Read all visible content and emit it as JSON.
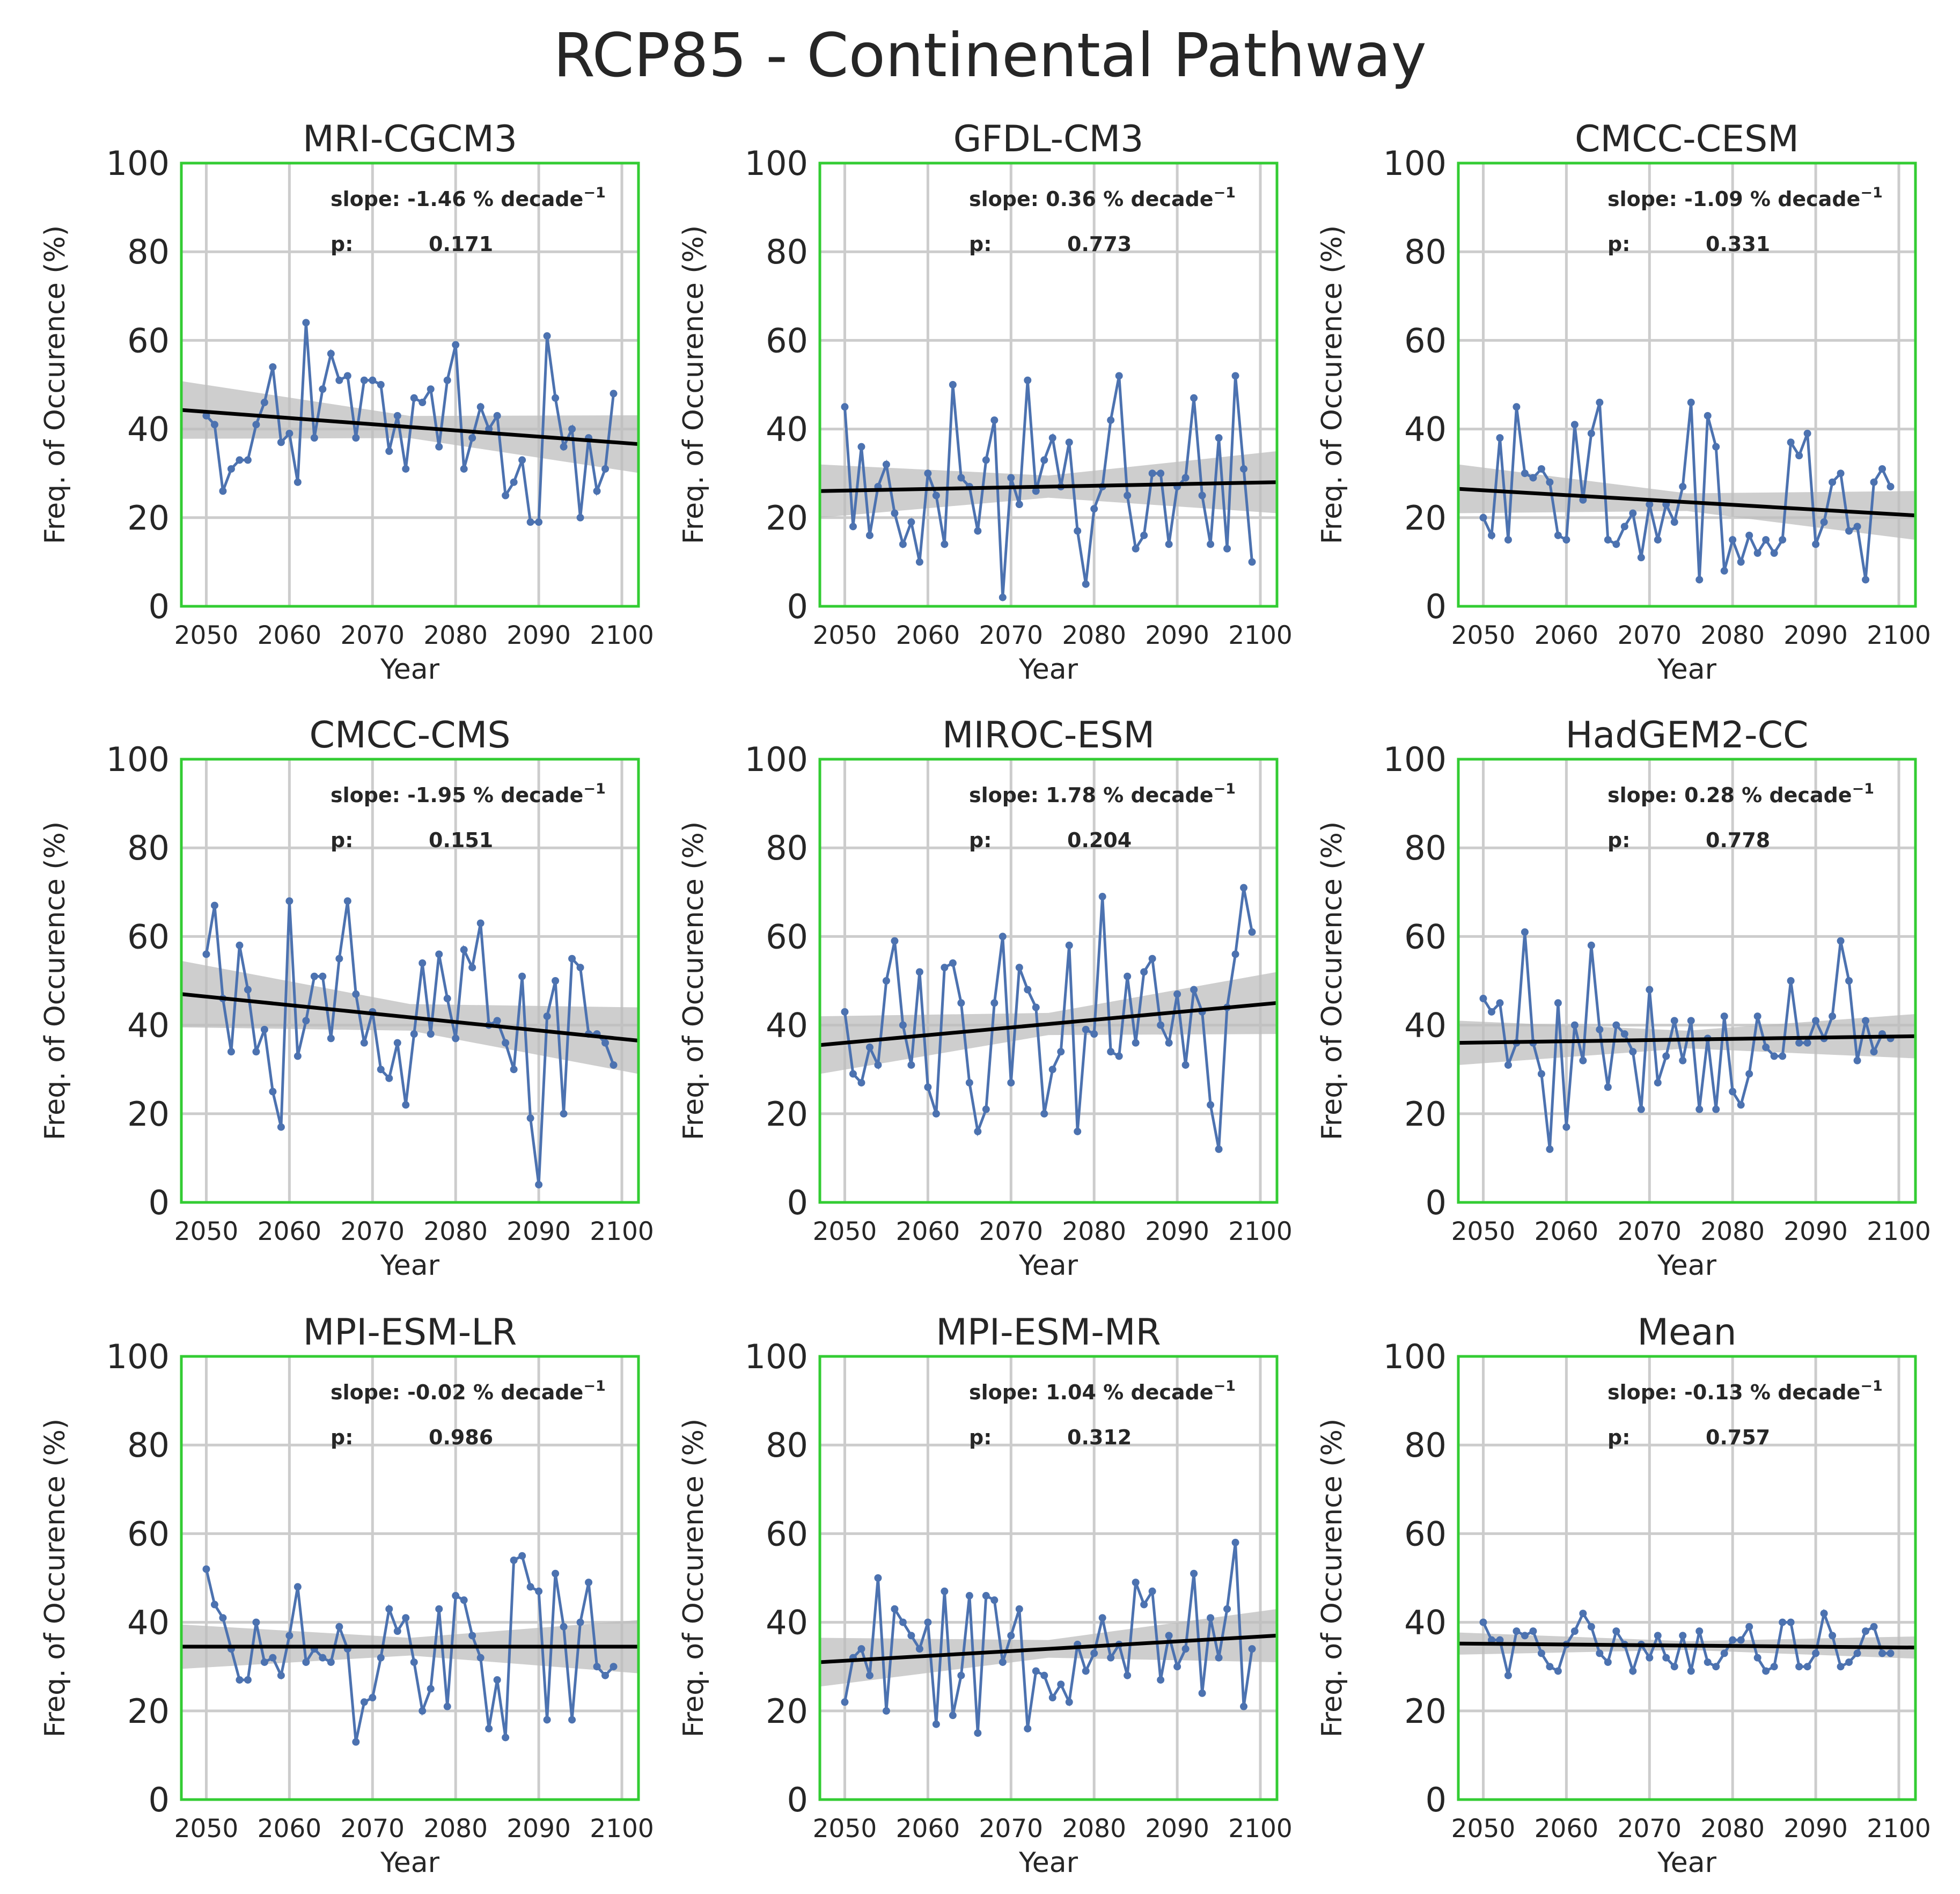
{
  "figure": {
    "suptitle": "RCP85 - Continental Pathway"
  },
  "style": {
    "series_color": "#4c72b0",
    "trend_color": "#000000",
    "band_color": "#bdbdbd",
    "frame_color": "#33cc33",
    "grid_color": "#cccccc"
  },
  "chart_data": [
    {
      "type": "line",
      "title": "MRI-CGCM3",
      "xlabel": "Year",
      "ylabel": "Freq. of Occurence (%)",
      "xlim": [
        2047,
        2102
      ],
      "ylim": [
        0,
        100
      ],
      "xticks": [
        2050,
        2060,
        2070,
        2080,
        2090,
        2100
      ],
      "yticks": [
        0,
        20,
        40,
        60,
        80,
        100
      ],
      "grid": true,
      "annotation": {
        "slope_label": "slope: -1.46 % decade",
        "slope_exponent": "−1",
        "p_label": "p:",
        "p_value": "0.171"
      },
      "trend": {
        "y_start": 44.3,
        "y_end": 36.6
      },
      "band_halfwidth": [
        6.5,
        2.5,
        6.5
      ],
      "x": [
        2050,
        2051,
        2052,
        2053,
        2054,
        2055,
        2056,
        2057,
        2058,
        2059,
        2060,
        2061,
        2062,
        2063,
        2064,
        2065,
        2066,
        2067,
        2068,
        2069,
        2070,
        2071,
        2072,
        2073,
        2074,
        2075,
        2076,
        2077,
        2078,
        2079,
        2080,
        2081,
        2082,
        2083,
        2084,
        2085,
        2086,
        2087,
        2088,
        2089,
        2090,
        2091,
        2092,
        2093,
        2094,
        2095,
        2096,
        2097,
        2098,
        2099
      ],
      "y": [
        43,
        41,
        26,
        31,
        33,
        33,
        41,
        46,
        54,
        37,
        39,
        28,
        64,
        38,
        49,
        57,
        51,
        52,
        38,
        51,
        51,
        50,
        35,
        43,
        31,
        47,
        46,
        49,
        36,
        51,
        59,
        31,
        38,
        45,
        40,
        43,
        25,
        28,
        33,
        19,
        19,
        61,
        47,
        36,
        40,
        20,
        38,
        26,
        31,
        48
      ]
    },
    {
      "type": "line",
      "title": "GFDL-CM3",
      "xlabel": "Year",
      "ylabel": "Freq. of Occurence (%)",
      "xlim": [
        2047,
        2102
      ],
      "ylim": [
        0,
        100
      ],
      "xticks": [
        2050,
        2060,
        2070,
        2080,
        2090,
        2100
      ],
      "yticks": [
        0,
        20,
        40,
        60,
        80,
        100
      ],
      "grid": true,
      "annotation": {
        "slope_label": "slope: 0.36 % decade",
        "slope_exponent": "−1",
        "p_label": "p:",
        "p_value": "0.773"
      },
      "trend": {
        "y_start": 26.0,
        "y_end": 28.0
      },
      "band_halfwidth": [
        6.0,
        2.5,
        7.0
      ],
      "x": [
        2050,
        2051,
        2052,
        2053,
        2054,
        2055,
        2056,
        2057,
        2058,
        2059,
        2060,
        2061,
        2062,
        2063,
        2064,
        2065,
        2066,
        2067,
        2068,
        2069,
        2070,
        2071,
        2072,
        2073,
        2074,
        2075,
        2076,
        2077,
        2078,
        2079,
        2080,
        2081,
        2082,
        2083,
        2084,
        2085,
        2086,
        2087,
        2088,
        2089,
        2090,
        2091,
        2092,
        2093,
        2094,
        2095,
        2096,
        2097,
        2098,
        2099
      ],
      "y": [
        45,
        18,
        36,
        16,
        27,
        32,
        21,
        14,
        19,
        10,
        30,
        25,
        14,
        50,
        29,
        27,
        17,
        33,
        42,
        2,
        29,
        23,
        51,
        26,
        33,
        38,
        27,
        37,
        17,
        5,
        22,
        27,
        42,
        52,
        25,
        13,
        16,
        30,
        30,
        14,
        27,
        29,
        47,
        25,
        14,
        38,
        13,
        52,
        31,
        10
      ]
    },
    {
      "type": "line",
      "title": "CMCC-CESM",
      "xlabel": "Year",
      "ylabel": "Freq. of Occurence (%)",
      "xlim": [
        2047,
        2102
      ],
      "ylim": [
        0,
        100
      ],
      "xticks": [
        2050,
        2060,
        2070,
        2080,
        2090,
        2100
      ],
      "yticks": [
        0,
        20,
        40,
        60,
        80,
        100
      ],
      "grid": true,
      "annotation": {
        "slope_label": "slope: -1.09 % decade",
        "slope_exponent": "−1",
        "p_label": "p:",
        "p_value": "0.331"
      },
      "trend": {
        "y_start": 26.5,
        "y_end": 20.5
      },
      "band_halfwidth": [
        5.5,
        2.0,
        5.5
      ],
      "x": [
        2050,
        2051,
        2052,
        2053,
        2054,
        2055,
        2056,
        2057,
        2058,
        2059,
        2060,
        2061,
        2062,
        2063,
        2064,
        2065,
        2066,
        2067,
        2068,
        2069,
        2070,
        2071,
        2072,
        2073,
        2074,
        2075,
        2076,
        2077,
        2078,
        2079,
        2080,
        2081,
        2082,
        2083,
        2084,
        2085,
        2086,
        2087,
        2088,
        2089,
        2090,
        2091,
        2092,
        2093,
        2094,
        2095,
        2096,
        2097,
        2098,
        2099
      ],
      "y": [
        20,
        16,
        38,
        15,
        45,
        30,
        29,
        31,
        28,
        16,
        15,
        41,
        24,
        39,
        46,
        15,
        14,
        18,
        21,
        11,
        23,
        15,
        23,
        19,
        27,
        46,
        6,
        43,
        36,
        8,
        15,
        10,
        16,
        12,
        15,
        12,
        15,
        37,
        34,
        39,
        14,
        19,
        28,
        30,
        17,
        18,
        6,
        28,
        31,
        27
      ]
    },
    {
      "type": "line",
      "title": "CMCC-CMS",
      "xlabel": "Year",
      "ylabel": "Freq. of Occurence (%)",
      "xlim": [
        2047,
        2102
      ],
      "ylim": [
        0,
        100
      ],
      "xticks": [
        2050,
        2060,
        2070,
        2080,
        2090,
        2100
      ],
      "yticks": [
        0,
        20,
        40,
        60,
        80,
        100
      ],
      "grid": true,
      "annotation": {
        "slope_label": "slope: -1.95 % decade",
        "slope_exponent": "−1",
        "p_label": "p:",
        "p_value": "0.151"
      },
      "trend": {
        "y_start": 47.0,
        "y_end": 36.5
      },
      "band_halfwidth": [
        7.5,
        3.0,
        7.5
      ],
      "x": [
        2050,
        2051,
        2052,
        2053,
        2054,
        2055,
        2056,
        2057,
        2058,
        2059,
        2060,
        2061,
        2062,
        2063,
        2064,
        2065,
        2066,
        2067,
        2068,
        2069,
        2070,
        2071,
        2072,
        2073,
        2074,
        2075,
        2076,
        2077,
        2078,
        2079,
        2080,
        2081,
        2082,
        2083,
        2084,
        2085,
        2086,
        2087,
        2088,
        2089,
        2090,
        2091,
        2092,
        2093,
        2094,
        2095,
        2096,
        2097,
        2098,
        2099
      ],
      "y": [
        56,
        67,
        46,
        34,
        58,
        48,
        34,
        39,
        25,
        17,
        68,
        33,
        41,
        51,
        51,
        37,
        55,
        68,
        47,
        36,
        43,
        30,
        28,
        36,
        22,
        38,
        54,
        38,
        56,
        46,
        37,
        57,
        53,
        63,
        40,
        41,
        36,
        30,
        51,
        19,
        4,
        42,
        50,
        20,
        55,
        53,
        38,
        38,
        36,
        31
      ]
    },
    {
      "type": "line",
      "title": "MIROC-ESM",
      "xlabel": "Year",
      "ylabel": "Freq. of Occurence (%)",
      "xlim": [
        2047,
        2102
      ],
      "ylim": [
        0,
        100
      ],
      "xticks": [
        2050,
        2060,
        2070,
        2080,
        2090,
        2100
      ],
      "yticks": [
        0,
        20,
        40,
        60,
        80,
        100
      ],
      "grid": true,
      "annotation": {
        "slope_label": "slope: 1.78 % decade",
        "slope_exponent": "−1",
        "p_label": "p:",
        "p_value": "0.204"
      },
      "trend": {
        "y_start": 35.5,
        "y_end": 45.0
      },
      "band_halfwidth": [
        6.5,
        2.5,
        7.0
      ],
      "x": [
        2050,
        2051,
        2052,
        2053,
        2054,
        2055,
        2056,
        2057,
        2058,
        2059,
        2060,
        2061,
        2062,
        2063,
        2064,
        2065,
        2066,
        2067,
        2068,
        2069,
        2070,
        2071,
        2072,
        2073,
        2074,
        2075,
        2076,
        2077,
        2078,
        2079,
        2080,
        2081,
        2082,
        2083,
        2084,
        2085,
        2086,
        2087,
        2088,
        2089,
        2090,
        2091,
        2092,
        2093,
        2094,
        2095,
        2096,
        2097,
        2098,
        2099
      ],
      "y": [
        43,
        29,
        27,
        35,
        31,
        50,
        59,
        40,
        31,
        52,
        26,
        20,
        53,
        54,
        45,
        27,
        16,
        21,
        45,
        60,
        27,
        53,
        48,
        44,
        20,
        30,
        34,
        58,
        16,
        39,
        38,
        69,
        34,
        33,
        51,
        36,
        52,
        55,
        40,
        36,
        47,
        31,
        48,
        43,
        22,
        12,
        44,
        56,
        71,
        61
      ]
    },
    {
      "type": "line",
      "title": "HadGEM2-CC",
      "xlabel": "Year",
      "ylabel": "Freq. of Occurence (%)",
      "xlim": [
        2047,
        2102
      ],
      "ylim": [
        0,
        100
      ],
      "xticks": [
        2050,
        2060,
        2070,
        2080,
        2090,
        2100
      ],
      "yticks": [
        0,
        20,
        40,
        60,
        80,
        100
      ],
      "grid": true,
      "annotation": {
        "slope_label": "slope: 0.28 % decade",
        "slope_exponent": "−1",
        "p_label": "p:",
        "p_value": "0.778"
      },
      "trend": {
        "y_start": 36.0,
        "y_end": 37.5
      },
      "band_halfwidth": [
        5.0,
        2.0,
        5.0
      ],
      "x": [
        2050,
        2051,
        2052,
        2053,
        2054,
        2055,
        2056,
        2057,
        2058,
        2059,
        2060,
        2061,
        2062,
        2063,
        2064,
        2065,
        2066,
        2067,
        2068,
        2069,
        2070,
        2071,
        2072,
        2073,
        2074,
        2075,
        2076,
        2077,
        2078,
        2079,
        2080,
        2081,
        2082,
        2083,
        2084,
        2085,
        2086,
        2087,
        2088,
        2089,
        2090,
        2091,
        2092,
        2093,
        2094,
        2095,
        2096,
        2097,
        2098,
        2099
      ],
      "y": [
        46,
        43,
        45,
        31,
        36,
        61,
        36,
        29,
        12,
        45,
        17,
        40,
        32,
        58,
        39,
        26,
        40,
        38,
        34,
        21,
        48,
        27,
        33,
        41,
        32,
        41,
        21,
        37,
        21,
        42,
        25,
        22,
        29,
        42,
        35,
        33,
        33,
        50,
        36,
        36,
        41,
        37,
        42,
        59,
        50,
        32,
        41,
        34,
        38,
        37
      ]
    },
    {
      "type": "line",
      "title": "MPI-ESM-LR",
      "xlabel": "Year",
      "ylabel": "Freq. of Occurence (%)",
      "xlim": [
        2047,
        2102
      ],
      "ylim": [
        0,
        100
      ],
      "xticks": [
        2050,
        2060,
        2070,
        2080,
        2090,
        2100
      ],
      "yticks": [
        0,
        20,
        40,
        60,
        80,
        100
      ],
      "grid": true,
      "annotation": {
        "slope_label": "slope: -0.02 % decade",
        "slope_exponent": "−1",
        "p_label": "p:",
        "p_value": "0.986"
      },
      "trend": {
        "y_start": 34.5,
        "y_end": 34.5
      },
      "band_halfwidth": [
        5.0,
        2.0,
        6.0
      ],
      "x": [
        2050,
        2051,
        2052,
        2053,
        2054,
        2055,
        2056,
        2057,
        2058,
        2059,
        2060,
        2061,
        2062,
        2063,
        2064,
        2065,
        2066,
        2067,
        2068,
        2069,
        2070,
        2071,
        2072,
        2073,
        2074,
        2075,
        2076,
        2077,
        2078,
        2079,
        2080,
        2081,
        2082,
        2083,
        2084,
        2085,
        2086,
        2087,
        2088,
        2089,
        2090,
        2091,
        2092,
        2093,
        2094,
        2095,
        2096,
        2097,
        2098,
        2099
      ],
      "y": [
        52,
        44,
        41,
        34,
        27,
        27,
        40,
        31,
        32,
        28,
        37,
        48,
        31,
        34,
        32,
        31,
        39,
        34,
        13,
        22,
        23,
        32,
        43,
        38,
        41,
        31,
        20,
        25,
        43,
        21,
        46,
        45,
        37,
        32,
        16,
        27,
        14,
        54,
        55,
        48,
        47,
        18,
        51,
        39,
        18,
        40,
        49,
        30,
        28,
        30
      ]
    },
    {
      "type": "line",
      "title": "MPI-ESM-MR",
      "xlabel": "Year",
      "ylabel": "Freq. of Occurence (%)",
      "xlim": [
        2047,
        2102
      ],
      "ylim": [
        0,
        100
      ],
      "xticks": [
        2050,
        2060,
        2070,
        2080,
        2090,
        2100
      ],
      "yticks": [
        0,
        20,
        40,
        60,
        80,
        100
      ],
      "grid": true,
      "annotation": {
        "slope_label": "slope: 1.04 % decade",
        "slope_exponent": "−1",
        "p_label": "p:",
        "p_value": "0.312"
      },
      "trend": {
        "y_start": 31.0,
        "y_end": 37.0
      },
      "band_halfwidth": [
        5.5,
        2.0,
        6.0
      ],
      "x": [
        2050,
        2051,
        2052,
        2053,
        2054,
        2055,
        2056,
        2057,
        2058,
        2059,
        2060,
        2061,
        2062,
        2063,
        2064,
        2065,
        2066,
        2067,
        2068,
        2069,
        2070,
        2071,
        2072,
        2073,
        2074,
        2075,
        2076,
        2077,
        2078,
        2079,
        2080,
        2081,
        2082,
        2083,
        2084,
        2085,
        2086,
        2087,
        2088,
        2089,
        2090,
        2091,
        2092,
        2093,
        2094,
        2095,
        2096,
        2097,
        2098,
        2099
      ],
      "y": [
        22,
        32,
        34,
        28,
        50,
        20,
        43,
        40,
        37,
        34,
        40,
        17,
        47,
        19,
        28,
        46,
        15,
        46,
        45,
        31,
        37,
        43,
        16,
        29,
        28,
        23,
        26,
        22,
        35,
        29,
        33,
        41,
        32,
        35,
        28,
        49,
        44,
        47,
        27,
        37,
        30,
        34,
        51,
        24,
        41,
        32,
        43,
        58,
        21,
        34
      ]
    },
    {
      "type": "line",
      "title": "Mean",
      "xlabel": "Year",
      "ylabel": "Freq. of Occurence (%)",
      "xlim": [
        2047,
        2102
      ],
      "ylim": [
        0,
        100
      ],
      "xticks": [
        2050,
        2060,
        2070,
        2080,
        2090,
        2100
      ],
      "yticks": [
        0,
        20,
        40,
        60,
        80,
        100
      ],
      "grid": true,
      "annotation": {
        "slope_label": "slope: -0.13 % decade",
        "slope_exponent": "−1",
        "p_label": "p:",
        "p_value": "0.757"
      },
      "trend": {
        "y_start": 35.2,
        "y_end": 34.3
      },
      "band_halfwidth": [
        2.5,
        1.0,
        2.5
      ],
      "x": [
        2050,
        2051,
        2052,
        2053,
        2054,
        2055,
        2056,
        2057,
        2058,
        2059,
        2060,
        2061,
        2062,
        2063,
        2064,
        2065,
        2066,
        2067,
        2068,
        2069,
        2070,
        2071,
        2072,
        2073,
        2074,
        2075,
        2076,
        2077,
        2078,
        2079,
        2080,
        2081,
        2082,
        2083,
        2084,
        2085,
        2086,
        2087,
        2088,
        2089,
        2090,
        2091,
        2092,
        2093,
        2094,
        2095,
        2096,
        2097,
        2098,
        2099
      ],
      "y": [
        40,
        36,
        36,
        28,
        38,
        37,
        38,
        33,
        30,
        29,
        35,
        38,
        42,
        39,
        33,
        31,
        38,
        35,
        29,
        35,
        32,
        37,
        32,
        30,
        37,
        29,
        38,
        31,
        30,
        33,
        36,
        36,
        39,
        32,
        29,
        30,
        40,
        40,
        30,
        30,
        33,
        42,
        37,
        30,
        31,
        33,
        38,
        39,
        33,
        33
      ]
    }
  ]
}
